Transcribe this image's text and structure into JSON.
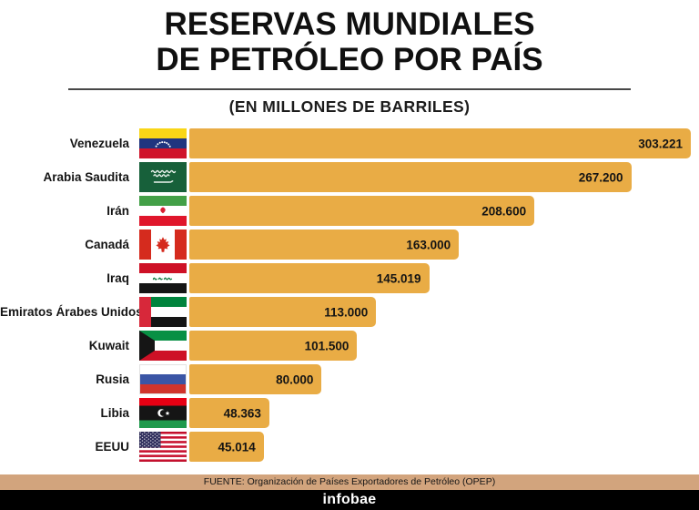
{
  "chart_data": {
    "type": "bar",
    "orientation": "horizontal",
    "title_line1": "RESERVAS MUNDIALES",
    "title_line2": "DE PETRÓLEO POR PAÍS",
    "subtitle": "(EN MILLONES DE BARRILES)",
    "unit": "millones de barriles",
    "categories": [
      "Venezuela",
      "Arabia Saudita",
      "Irán",
      "Canadá",
      "Iraq",
      "Emiratos Árabes Unidos",
      "Kuwait",
      "Rusia",
      "Libia",
      "EEUU"
    ],
    "values": [
      303221,
      267200,
      208600,
      163000,
      145019,
      113000,
      101500,
      80000,
      48363,
      45014
    ],
    "value_labels": [
      "303.221",
      "267.200",
      "208.600",
      "163.000",
      "145.019",
      "113.000",
      "101.500",
      "80.000",
      "48.363",
      "45.014"
    ],
    "flag_ids": [
      "venezuela",
      "arabia-saudita",
      "iran",
      "canada",
      "iraq",
      "emiratos-arabes-unidos",
      "kuwait",
      "rusia",
      "libia",
      "eeuu"
    ],
    "xlim": [
      0,
      303221
    ],
    "grid": false,
    "legend": "none",
    "value_position": "inside-end",
    "bar_color": "#E9AC45"
  },
  "footer": {
    "source": "FUENTE: Organización de Países Exportadores de Petróleo (OPEP)",
    "brand": "infobae"
  },
  "colors": {
    "bar": "#E9AC45",
    "source_band": "#D2A47D",
    "brand_band": "#000000",
    "title_text": "#101010"
  }
}
